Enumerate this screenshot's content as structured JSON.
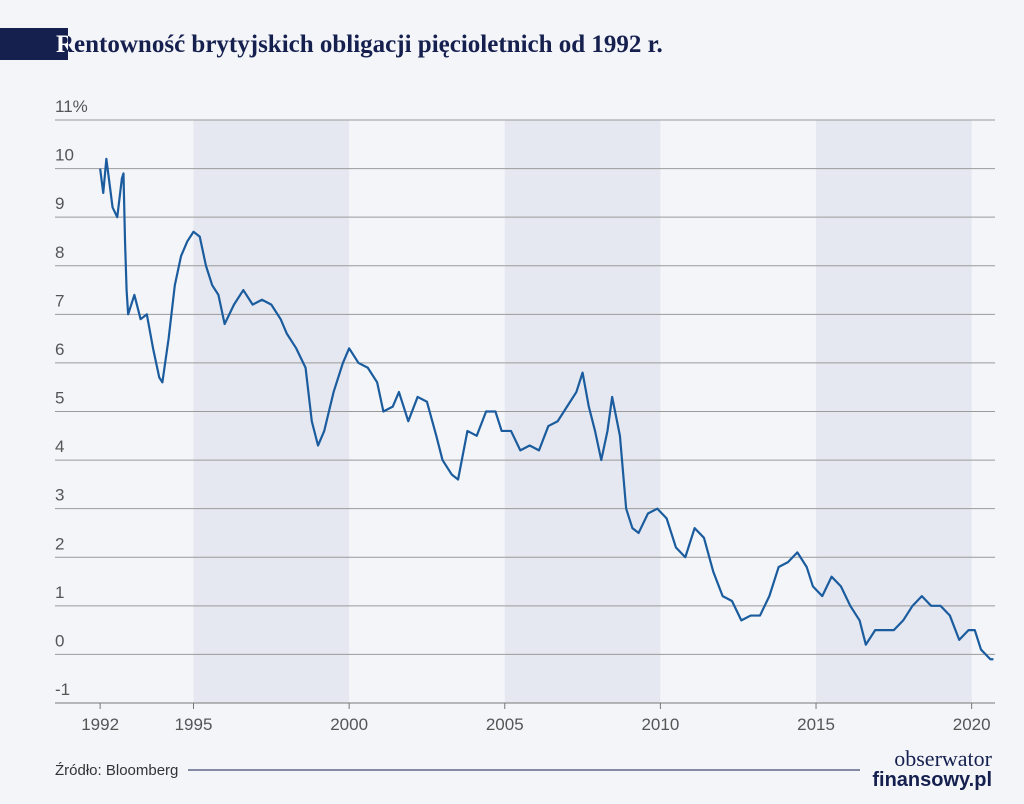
{
  "chart_data": {
    "type": "line",
    "title": "Rentowność brytyjskich obligacji pięcioletnich od 1992 r.",
    "source": "Źródło: Bloomberg",
    "color": "#1b5c9e",
    "x": [
      1992.0,
      1992.1,
      1992.2,
      1992.4,
      1992.55,
      1992.7,
      1992.75,
      1992.8,
      1992.85,
      1992.9,
      1993.1,
      1993.3,
      1993.5,
      1993.7,
      1993.9,
      1994.0,
      1994.2,
      1994.4,
      1994.6,
      1994.8,
      1995.0,
      1995.2,
      1995.4,
      1995.6,
      1995.8,
      1996.0,
      1996.3,
      1996.6,
      1996.9,
      1997.2,
      1997.5,
      1997.8,
      1998.0,
      1998.3,
      1998.6,
      1998.8,
      1999.0,
      1999.2,
      1999.5,
      1999.8,
      2000.0,
      2000.3,
      2000.6,
      2000.9,
      2001.1,
      2001.4,
      2001.6,
      2001.9,
      2002.2,
      2002.5,
      2002.8,
      2003.0,
      2003.3,
      2003.5,
      2003.8,
      2004.1,
      2004.4,
      2004.7,
      2004.9,
      2005.2,
      2005.5,
      2005.8,
      2006.1,
      2006.4,
      2006.7,
      2007.0,
      2007.3,
      2007.5,
      2007.7,
      2007.9,
      2008.1,
      2008.3,
      2008.45,
      2008.7,
      2008.9,
      2009.1,
      2009.3,
      2009.6,
      2009.9,
      2010.2,
      2010.5,
      2010.8,
      2011.1,
      2011.4,
      2011.7,
      2012.0,
      2012.3,
      2012.6,
      2012.9,
      2013.2,
      2013.5,
      2013.8,
      2014.1,
      2014.4,
      2014.7,
      2014.9,
      2015.2,
      2015.5,
      2015.8,
      2016.1,
      2016.4,
      2016.6,
      2016.9,
      2017.2,
      2017.5,
      2017.8,
      2018.1,
      2018.4,
      2018.7,
      2019.0,
      2019.3,
      2019.6,
      2019.9,
      2020.1,
      2020.3,
      2020.6,
      2020.7
    ],
    "values": [
      10.0,
      9.5,
      10.2,
      9.2,
      9.0,
      9.8,
      9.9,
      8.5,
      7.5,
      7.0,
      7.4,
      6.9,
      7.0,
      6.3,
      5.7,
      5.6,
      6.5,
      7.6,
      8.2,
      8.5,
      8.7,
      8.6,
      8.0,
      7.6,
      7.4,
      6.8,
      7.2,
      7.5,
      7.2,
      7.3,
      7.2,
      6.9,
      6.6,
      6.3,
      5.9,
      4.8,
      4.3,
      4.6,
      5.4,
      6.0,
      6.3,
      6.0,
      5.9,
      5.6,
      5.0,
      5.1,
      5.4,
      4.8,
      5.3,
      5.2,
      4.5,
      4.0,
      3.7,
      3.6,
      4.6,
      4.5,
      5.0,
      5.0,
      4.6,
      4.6,
      4.2,
      4.3,
      4.2,
      4.7,
      4.8,
      5.1,
      5.4,
      5.8,
      5.1,
      4.6,
      4.0,
      4.6,
      5.3,
      4.5,
      3.0,
      2.6,
      2.5,
      2.9,
      3.0,
      2.8,
      2.2,
      2.0,
      2.6,
      2.4,
      1.7,
      1.2,
      1.1,
      0.7,
      0.8,
      0.8,
      1.2,
      1.8,
      1.9,
      2.1,
      1.8,
      1.4,
      1.2,
      1.6,
      1.4,
      1.0,
      0.7,
      0.2,
      0.5,
      0.5,
      0.5,
      0.7,
      1.0,
      1.2,
      1.0,
      1.0,
      0.8,
      0.3,
      0.5,
      0.5,
      0.1,
      -0.1,
      -0.1
    ],
    "xlim": [
      1990.55,
      2020.75
    ],
    "xticks": [
      1992,
      1995,
      2000,
      2005,
      2010,
      2015,
      2020
    ],
    "ylim": [
      -1,
      11
    ],
    "yticks": [
      -1,
      0,
      1,
      2,
      3,
      4,
      5,
      6,
      7,
      8,
      9,
      10,
      {
        "value": 11,
        "label": "11%"
      }
    ],
    "shaded_spans": [
      [
        1995,
        2000
      ],
      [
        2005,
        2010
      ],
      [
        2015,
        2020
      ]
    ],
    "grid": true
  },
  "logo": [
    "obserwator",
    "finansowy.pl"
  ]
}
